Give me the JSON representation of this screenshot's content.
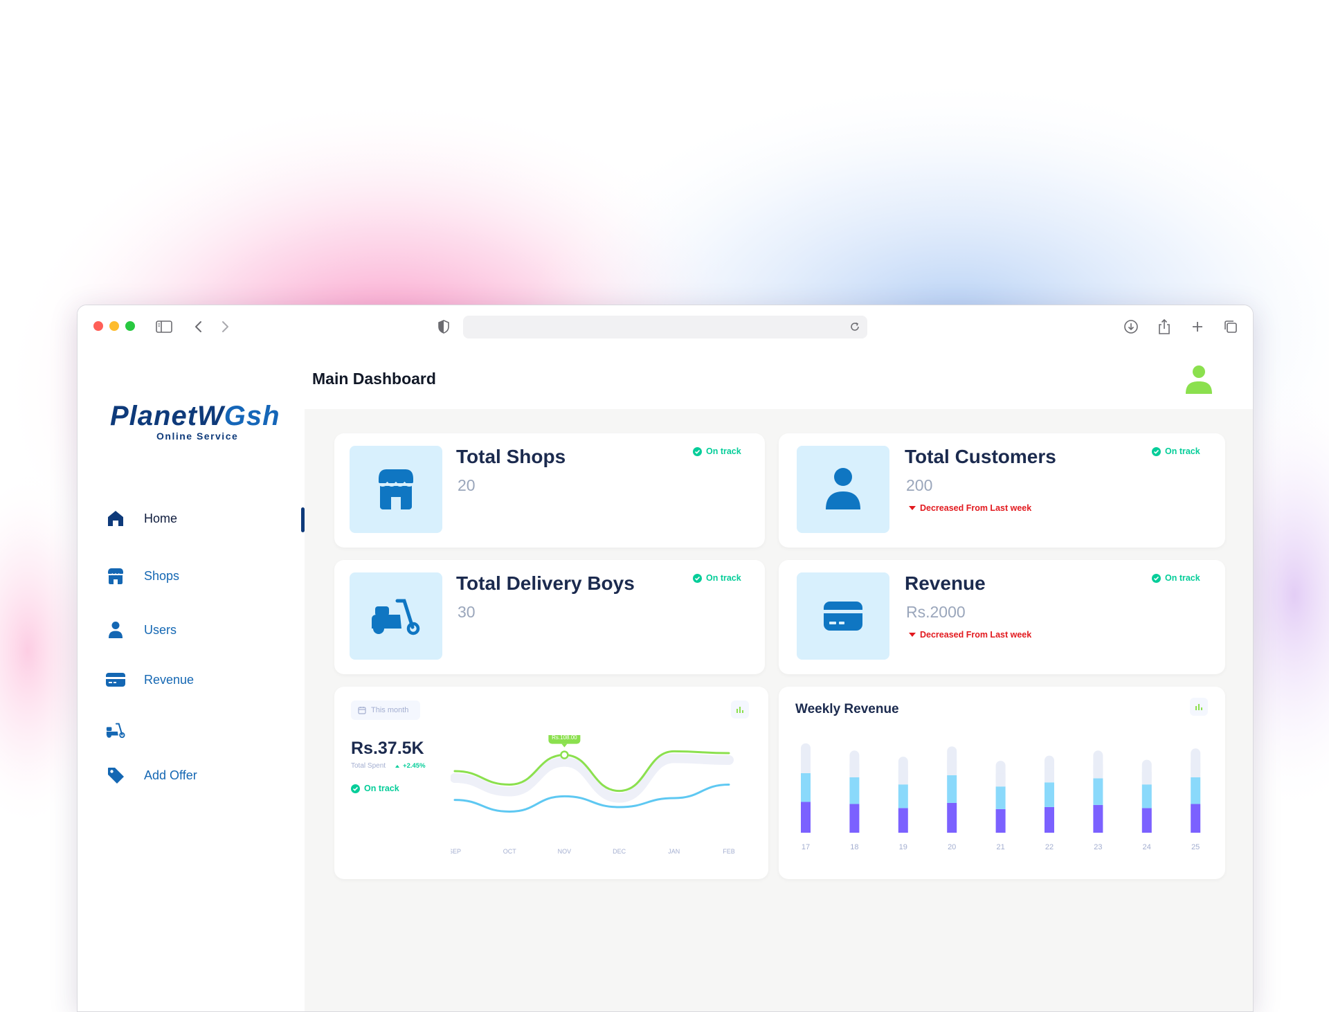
{
  "app": {
    "logo_main": "PlanetW",
    "logo_wash": "Gsh",
    "logo_sub": "Online Service"
  },
  "header": {
    "title": "Main Dashboard"
  },
  "sidebar": {
    "items": [
      {
        "label": "Home",
        "icon": "home-icon",
        "active": true
      },
      {
        "label": "Shops",
        "icon": "shop-icon"
      },
      {
        "label": "Users",
        "icon": "user-icon"
      },
      {
        "label": "Revenue",
        "icon": "card-icon"
      },
      {
        "label": "",
        "icon": "scooter-icon"
      },
      {
        "label": "Add Offer",
        "icon": "tag-icon"
      }
    ]
  },
  "stats": [
    {
      "title": "Total Shops",
      "value": "20",
      "status": "On track",
      "change": "",
      "icon": "shop-icon"
    },
    {
      "title": "Total Customers",
      "value": "200",
      "status": "On track",
      "change": "Decreased From Last week",
      "icon": "user-icon"
    },
    {
      "title": "Total Delivery Boys",
      "value": "30",
      "status": "On track",
      "change": "",
      "icon": "scooter-icon"
    },
    {
      "title": "Revenue",
      "value": "Rs.2000",
      "status": "On track",
      "change": "Decreased From Last week",
      "icon": "card-icon"
    }
  ],
  "spent_card": {
    "period": "This month",
    "total": "Rs.37.5K",
    "total_label": "Total Spent",
    "change": "+2.45%",
    "status": "On track",
    "tooltip": "Rs.108.00"
  },
  "weekly_card": {
    "title": "Weekly Revenue"
  },
  "colors": {
    "accent": "#1467b3",
    "navy": "#0e3a7a",
    "success": "#05cd99",
    "danger": "#e2191e",
    "line_green": "#8be04e",
    "line_blue": "#5ec8f2",
    "bar_purple": "#7b61ff",
    "bar_cyan": "#8ad9fb",
    "bar_light": "#e9edf7"
  },
  "chart_data": [
    {
      "type": "line",
      "title": "",
      "categories": [
        "SEP",
        "OCT",
        "NOV",
        "DEC",
        "JAN",
        "FEB"
      ],
      "series": [
        {
          "name": "",
          "values": [
            60,
            45,
            78,
            38,
            82,
            80
          ]
        },
        {
          "name": "",
          "values": [
            28,
            15,
            32,
            20,
            30,
            45
          ]
        }
      ],
      "ylim": [
        0,
        100
      ],
      "annotation": {
        "label": "Rs.108.00",
        "category": "NOV"
      }
    },
    {
      "type": "bar",
      "title": "Weekly Revenue",
      "categories": [
        "17",
        "18",
        "19",
        "20",
        "21",
        "22",
        "23",
        "24",
        "25"
      ],
      "series": [
        {
          "name": "",
          "values": [
            30,
            28,
            24,
            29,
            23,
            25,
            27,
            24,
            28
          ]
        },
        {
          "name": "",
          "values": [
            28,
            26,
            23,
            27,
            22,
            24,
            26,
            23,
            26
          ]
        },
        {
          "name": "",
          "values": [
            29,
            26,
            27,
            28,
            25,
            26,
            27,
            24,
            28
          ]
        }
      ],
      "ylim": [
        0,
        95
      ]
    }
  ]
}
